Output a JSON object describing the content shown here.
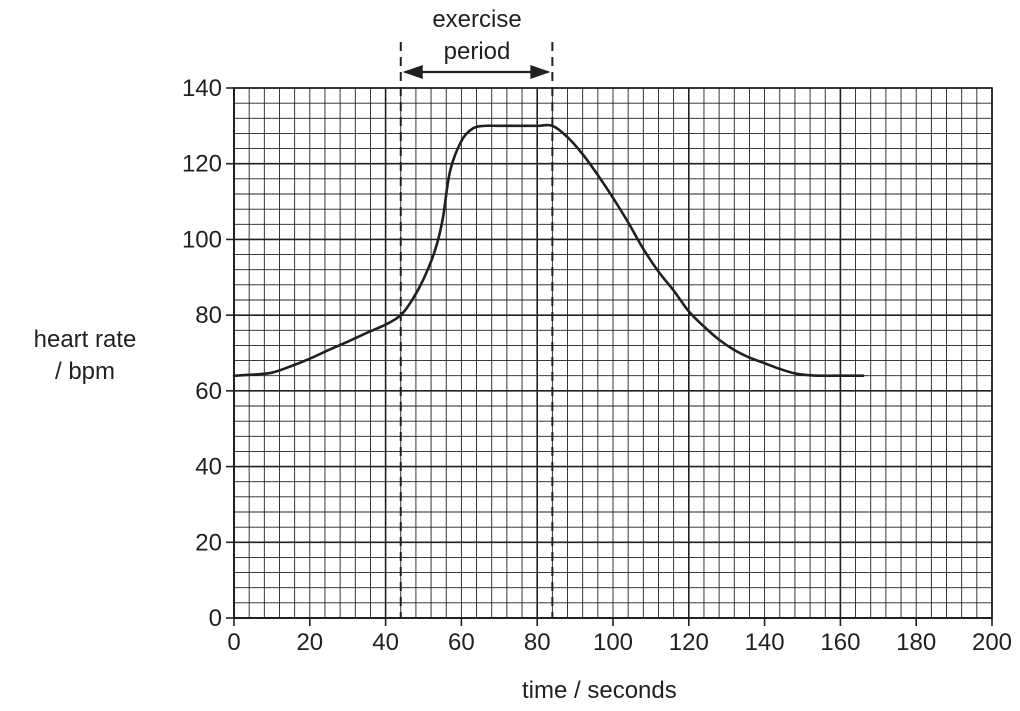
{
  "chart_data": {
    "type": "line",
    "title": "",
    "xlabel": "time / seconds",
    "ylabel_lines": [
      "heart rate",
      "/ bpm"
    ],
    "xlim": [
      0,
      200
    ],
    "ylim": [
      0,
      140
    ],
    "x_ticks": [
      0,
      20,
      40,
      60,
      80,
      100,
      120,
      140,
      160,
      180,
      200
    ],
    "y_ticks": [
      0,
      20,
      40,
      60,
      80,
      100,
      120,
      140
    ],
    "grid": true,
    "series": [
      {
        "x": [
          0,
          5,
          10,
          15,
          20,
          25,
          30,
          35,
          40,
          44,
          47,
          50,
          53,
          55,
          57,
          60,
          63,
          66,
          70,
          75,
          80,
          84,
          88,
          92,
          96,
          100,
          104,
          108,
          112,
          116,
          120,
          124,
          128,
          132,
          136,
          140,
          144,
          148,
          152,
          155,
          160,
          166
        ],
        "y": [
          64,
          64.3,
          64.8,
          66.5,
          68.5,
          70.8,
          73,
          75.3,
          77.5,
          80,
          84,
          89.5,
          97,
          105,
          118,
          126,
          129.3,
          130,
          130,
          130,
          130,
          130,
          127,
          122.5,
          117,
          111,
          104.5,
          97.5,
          91.5,
          86.5,
          81,
          77,
          73.5,
          70.8,
          68.8,
          67.3,
          65.8,
          64.6,
          64.1,
          64,
          64,
          64
        ]
      }
    ],
    "annotation": {
      "text_lines": [
        "exercise",
        "period"
      ],
      "x_start": 44,
      "x_end": 84
    }
  }
}
